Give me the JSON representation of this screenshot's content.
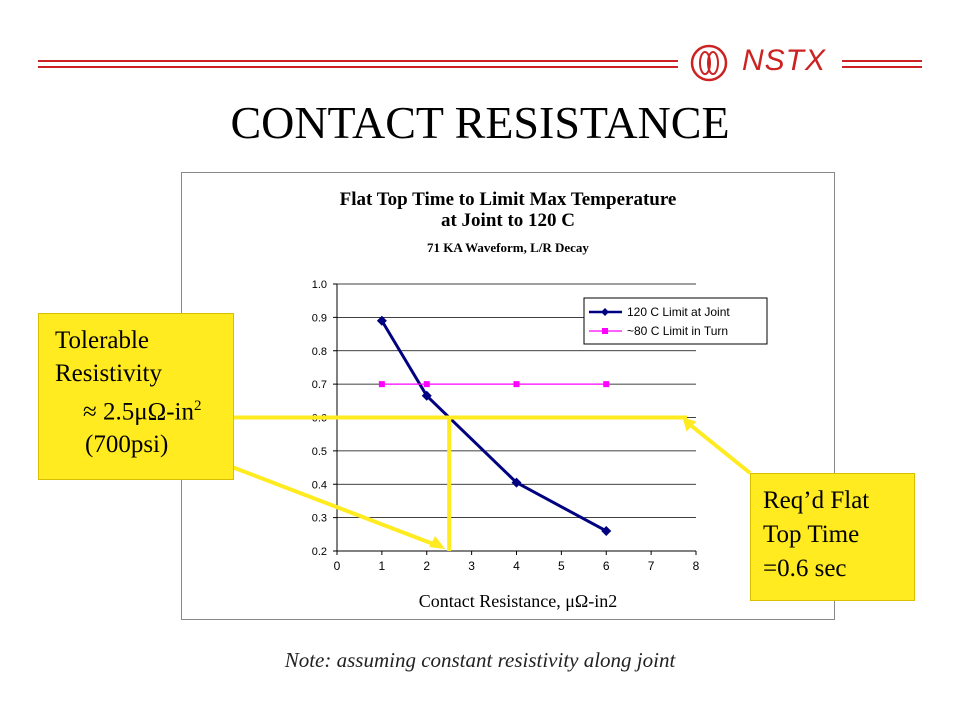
{
  "slide": {
    "title": "CONTACT RESISTANCE",
    "logo_text": "NSTX",
    "note": "Note: assuming constant resistivity along joint",
    "accent_color": "#cc2222",
    "callout_color": "#ffeb1f"
  },
  "callout_left": {
    "line1": "Tolerable",
    "line2": "Resistivity",
    "line3_prefix": "≈ 2.5μΩ-in",
    "line3_sup": "2",
    "line4": "(700psi)"
  },
  "callout_right": {
    "line1": "Req’d Flat",
    "line2": "Top Time",
    "line3": "=0.6 sec"
  },
  "chart_data": {
    "type": "line",
    "title": "Flat Top Time to Limit Max Temperature",
    "title_line2": "at Joint to 120 C",
    "subtitle": "71 KA Waveform, L/R Decay",
    "xlabel": "Contact Resistance, μΩ-in2",
    "ylabel": "",
    "xlim": [
      0,
      8
    ],
    "ylim": [
      0.2,
      1.0
    ],
    "x_ticks": [
      "0",
      "1",
      "2",
      "3",
      "4",
      "5",
      "6",
      "7",
      "8"
    ],
    "y_ticks": [
      "0.2",
      "0.3",
      "0.4",
      "0.5",
      "0.6",
      "0.7",
      "0.8",
      "0.9",
      "1.0"
    ],
    "grid": "horizontal",
    "legend_position": "top-right",
    "series": [
      {
        "name": "120 C Limit at Joint",
        "x": [
          1,
          2,
          4,
          6
        ],
        "values": [
          0.89,
          0.665,
          0.405,
          0.26
        ],
        "color": "#000080",
        "marker": "diamond"
      },
      {
        "name": "~80 C Limit in Turn",
        "x": [
          1,
          2,
          4,
          6
        ],
        "values": [
          0.7,
          0.7,
          0.7,
          0.7
        ],
        "color": "#ff00ff",
        "marker": "square"
      }
    ],
    "annotation": {
      "required_time": 0.6,
      "tolerable_resistance": 2.5,
      "color": "#ffeb1f"
    }
  }
}
